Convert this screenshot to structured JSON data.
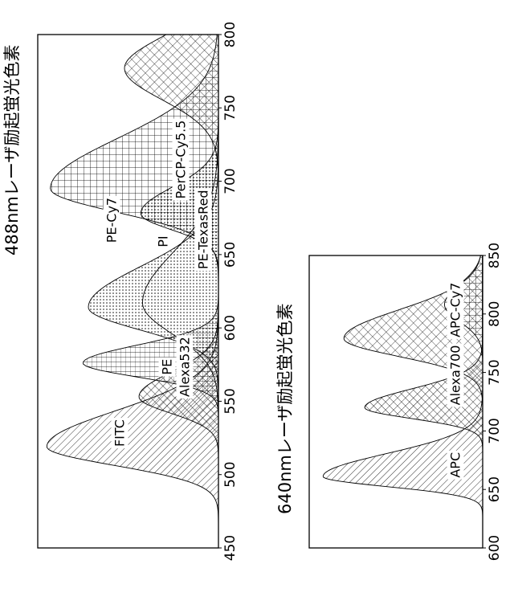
{
  "chart_data": [
    {
      "type": "area",
      "title": "488nmレーザ励起蛍光色素",
      "xlim": [
        450,
        800
      ],
      "x_ticks": [
        "450",
        "500",
        "550",
        "600",
        "650",
        "700",
        "750",
        "800"
      ],
      "series": [
        {
          "name": "FITC",
          "peak": 519,
          "fwhm": 30,
          "amplitude": 0.95,
          "tail": 1.9,
          "pattern": "diag"
        },
        {
          "name": "Alexa532",
          "peak": 553,
          "fwhm": 26,
          "amplitude": 0.44,
          "tail": 1.5,
          "pattern": "cross"
        },
        {
          "name": "PE",
          "peak": 576,
          "fwhm": 22,
          "amplitude": 0.75,
          "tail": 1.3,
          "pattern": "hgrid"
        },
        {
          "name": "PE-TexasRed",
          "peak": 614,
          "fwhm": 36,
          "amplitude": 0.72,
          "tail": 1.8,
          "pattern": "dots"
        },
        {
          "name": "PI",
          "peak": 617,
          "fwhm": 50,
          "amplitude": 0.42,
          "tail": 1.6,
          "pattern": "none"
        },
        {
          "name": "PE-Cy7",
          "peak": 777,
          "fwhm": 50,
          "amplitude": 0.52,
          "tail": 1.0,
          "pattern": "xhatch"
        },
        {
          "name": "PerCP-Cy5.5",
          "peak": 678,
          "fwhm": 26,
          "amplitude": 0.43,
          "tail": 1.6,
          "pattern": "dots"
        },
        {
          "name": "",
          "peak": 695,
          "fwhm": 38,
          "amplitude": 0.93,
          "tail": 2.1,
          "pattern": "grid"
        }
      ]
    },
    {
      "type": "area",
      "title": "640nmレーザ励起蛍光色素",
      "xlim": [
        600,
        850
      ],
      "x_ticks": [
        "600",
        "650",
        "700",
        "750",
        "800",
        "850"
      ],
      "series": [
        {
          "name": "APC",
          "peak": 661,
          "fwhm": 20,
          "amplitude": 0.92,
          "tail": 2.3,
          "pattern": "diag"
        },
        {
          "name": "Alexa700",
          "peak": 720,
          "fwhm": 22,
          "amplitude": 0.68,
          "tail": 1.7,
          "pattern": "cross"
        },
        {
          "name": "APC-Cy7",
          "peak": 779,
          "fwhm": 36,
          "amplitude": 0.8,
          "tail": 1.6,
          "pattern": "xhatch"
        },
        {
          "name": "",
          "peak": 808,
          "fwhm": 34,
          "amplitude": 0.22,
          "tail": 1.2,
          "pattern": "grid"
        }
      ]
    }
  ]
}
